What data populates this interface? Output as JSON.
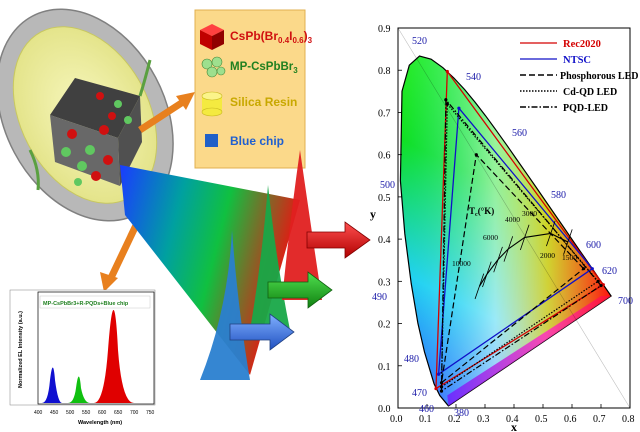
{
  "legend_box": {
    "items": [
      {
        "label": "CsPb(Br0.4I0.6)3",
        "icon": "red-cube-icon"
      },
      {
        "label": "MP-CsPbBr3",
        "icon": "green-sphere-cluster-icon"
      },
      {
        "label": "Silica Resin",
        "icon": "yellow-cylinder-icon"
      },
      {
        "label": "Blue chip",
        "icon": "blue-square-icon"
      }
    ]
  },
  "spectrum_inset": {
    "title": "MP-CsPbBr3+R-PQDs+Blue chip",
    "ylabel": "Normalized EL Intensity (a.u.)",
    "xlabel": "Wavelength (nm)",
    "xticks": [
      "400",
      "450",
      "500",
      "550",
      "600",
      "650",
      "700",
      "750"
    ]
  },
  "cie": {
    "y_axis_label": "y",
    "x_axis_label": "x",
    "xticks": [
      "0.0",
      "0.1",
      "0.2",
      "0.3",
      "0.4",
      "0.5",
      "0.6",
      "0.7",
      "0.8"
    ],
    "yticks": [
      "0.0",
      "0.1",
      "0.2",
      "0.3",
      "0.4",
      "0.5",
      "0.6",
      "0.7",
      "0.8",
      "0.9"
    ],
    "wavelength_labels": [
      "520",
      "540",
      "560",
      "580",
      "600",
      "620",
      "700",
      "500",
      "490",
      "480",
      "470",
      "460",
      "380"
    ],
    "legend": [
      "Rec2020",
      "NTSC",
      "Phosphorous LED",
      "Cd-QD LED",
      "PQD-LED"
    ],
    "planckian_label": "Tc(°K)",
    "temperatures": [
      "10000",
      "6000",
      "4000",
      "3000",
      "2000",
      "1500"
    ]
  },
  "chart_data": {
    "type": "scatter",
    "title": "",
    "xlabel": "x",
    "ylabel": "y",
    "xlim": [
      0.0,
      0.8
    ],
    "ylim": [
      0.0,
      0.9
    ],
    "grid": false,
    "legend_position": "top-right",
    "series": [
      {
        "name": "Rec2020",
        "x": [
          0.708,
          0.17,
          0.131
        ],
        "y": [
          0.292,
          0.797,
          0.046
        ]
      },
      {
        "name": "NTSC",
        "x": [
          0.67,
          0.21,
          0.14
        ],
        "y": [
          0.33,
          0.71,
          0.08
        ]
      },
      {
        "name": "Phosphorous LED",
        "x": [
          0.64,
          0.27,
          0.15
        ],
        "y": [
          0.33,
          0.6,
          0.06
        ]
      },
      {
        "name": "Cd-QD LED",
        "x": [
          0.69,
          0.17,
          0.15
        ],
        "y": [
          0.3,
          0.72,
          0.05
        ]
      },
      {
        "name": "PQD-LED",
        "x": [
          0.7,
          0.165,
          0.15
        ],
        "y": [
          0.29,
          0.73,
          0.04
        ]
      }
    ]
  },
  "colors": {
    "rec2020": "#d40000",
    "ntsc": "#1010c8",
    "wavelength_label": "#1a1aa8",
    "legend_box_bg": "#fbd98a",
    "arrow_orange": "#e8801e"
  }
}
